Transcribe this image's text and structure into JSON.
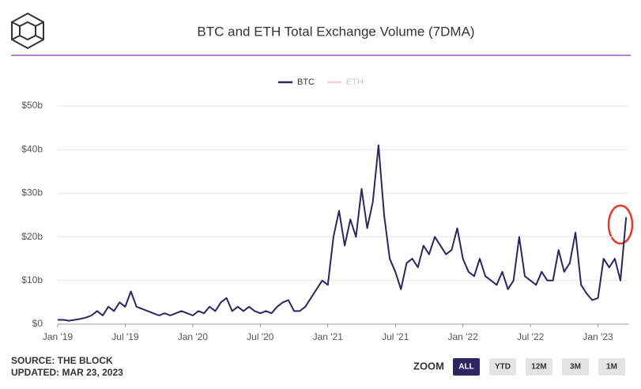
{
  "chart_data": {
    "type": "line",
    "title": "BTC and ETH Total Exchange Volume (7DMA)",
    "x": [
      0,
      0.5,
      1,
      1.5,
      2,
      2.5,
      3,
      3.5,
      4,
      4.5,
      5,
      5.5,
      6,
      6.5,
      7,
      7.5,
      8,
      8.5,
      9,
      9.5,
      10,
      10.5,
      11,
      11.5,
      12,
      12.5,
      13,
      13.5,
      14,
      14.5,
      15,
      15.5,
      16,
      16.5,
      17,
      17.5,
      18,
      18.5,
      19,
      19.5,
      20,
      20.5,
      21,
      21.5,
      22,
      22.5,
      23,
      23.5,
      24,
      24.5,
      25,
      25.5,
      26,
      26.5,
      27,
      27.5,
      28,
      28.5,
      29,
      29.5,
      30,
      30.5,
      31,
      31.5,
      32,
      32.5,
      33,
      33.5,
      34,
      34.5,
      35,
      35.5,
      36,
      36.5,
      37,
      37.5,
      38,
      38.5,
      39,
      39.5,
      40,
      40.5,
      41,
      41.5,
      42,
      42.5,
      43,
      43.5,
      44,
      44.5,
      45,
      45.5,
      46,
      46.5,
      47,
      47.5,
      48,
      48.5,
      49,
      49.5,
      50,
      50.5
    ],
    "series": [
      {
        "name": "BTC",
        "color": "#2b2660",
        "visible": true,
        "values": [
          1,
          1,
          0.8,
          1,
          1.2,
          1.5,
          2,
          3,
          2,
          4,
          3,
          5,
          4,
          7.5,
          4,
          3.5,
          3,
          2.5,
          2,
          2.5,
          2,
          2.5,
          3,
          2.5,
          2,
          3,
          2.5,
          4,
          3,
          5,
          6,
          3,
          4,
          3,
          4,
          3,
          2.5,
          3,
          2.5,
          4,
          5,
          5.5,
          3,
          3,
          4,
          6,
          8,
          10,
          9,
          20,
          26,
          18,
          24,
          20,
          31,
          22,
          28,
          41,
          25,
          15,
          12,
          8,
          14,
          15,
          13,
          18,
          16,
          20,
          18,
          16,
          17,
          22,
          15,
          12,
          11,
          15,
          11,
          10,
          9,
          12,
          8,
          10,
          20,
          11,
          10,
          9,
          12,
          10,
          10,
          17,
          12,
          14,
          21,
          9,
          7,
          5.5,
          6,
          15,
          13,
          15,
          10,
          24.5
        ]
      },
      {
        "name": "ETH",
        "color": "#f0b8cf",
        "visible": false,
        "values": [
          null,
          null,
          null,
          null,
          null,
          null,
          null,
          null,
          null,
          null,
          null,
          null,
          null,
          null,
          null,
          null,
          null,
          null,
          null,
          null,
          null,
          null,
          null,
          null,
          null,
          null,
          null,
          null,
          null,
          null,
          null,
          null,
          null,
          null,
          null,
          null,
          null,
          null,
          null,
          null,
          null,
          null,
          null,
          null,
          null,
          null,
          null,
          null,
          null,
          null,
          null,
          null,
          null,
          null,
          null,
          null,
          null,
          null,
          null,
          null,
          null,
          null,
          null,
          null,
          null,
          null,
          null,
          null,
          null,
          null,
          null,
          null,
          null,
          null,
          null,
          null,
          null,
          null,
          null,
          null,
          null,
          null,
          null,
          null,
          null,
          null,
          null,
          null,
          null,
          null,
          null,
          null,
          null,
          null,
          null,
          null,
          null,
          null,
          null,
          null,
          null,
          null
        ]
      }
    ],
    "xlim": [
      0,
      50.7
    ],
    "xticks": [
      {
        "value": 0,
        "label": "Jan '19"
      },
      {
        "value": 6,
        "label": "Jul '19"
      },
      {
        "value": 12,
        "label": "Jan '20"
      },
      {
        "value": 18,
        "label": "Jul '20"
      },
      {
        "value": 24,
        "label": "Jan '21"
      },
      {
        "value": 30,
        "label": "Jul '21"
      },
      {
        "value": 36,
        "label": "Jan '22"
      },
      {
        "value": 42,
        "label": "Jul '22"
      },
      {
        "value": 48,
        "label": "Jan '23"
      }
    ],
    "ylim": [
      0,
      50
    ],
    "yticks": [
      {
        "value": 0,
        "label": "$0"
      },
      {
        "value": 10,
        "label": "$10b"
      },
      {
        "value": 20,
        "label": "$20b"
      },
      {
        "value": 30,
        "label": "$30b"
      },
      {
        "value": 40,
        "label": "$40b"
      },
      {
        "value": 50,
        "label": "$50b"
      }
    ],
    "grid": true,
    "source": "SOURCE: THE BLOCK",
    "updated": "UPDATED: MAR 23, 2023",
    "zoom_label": "ZOOM",
    "zoom_buttons": [
      "ALL",
      "YTD",
      "12M",
      "3M",
      "1M"
    ],
    "zoom_active": 0
  }
}
